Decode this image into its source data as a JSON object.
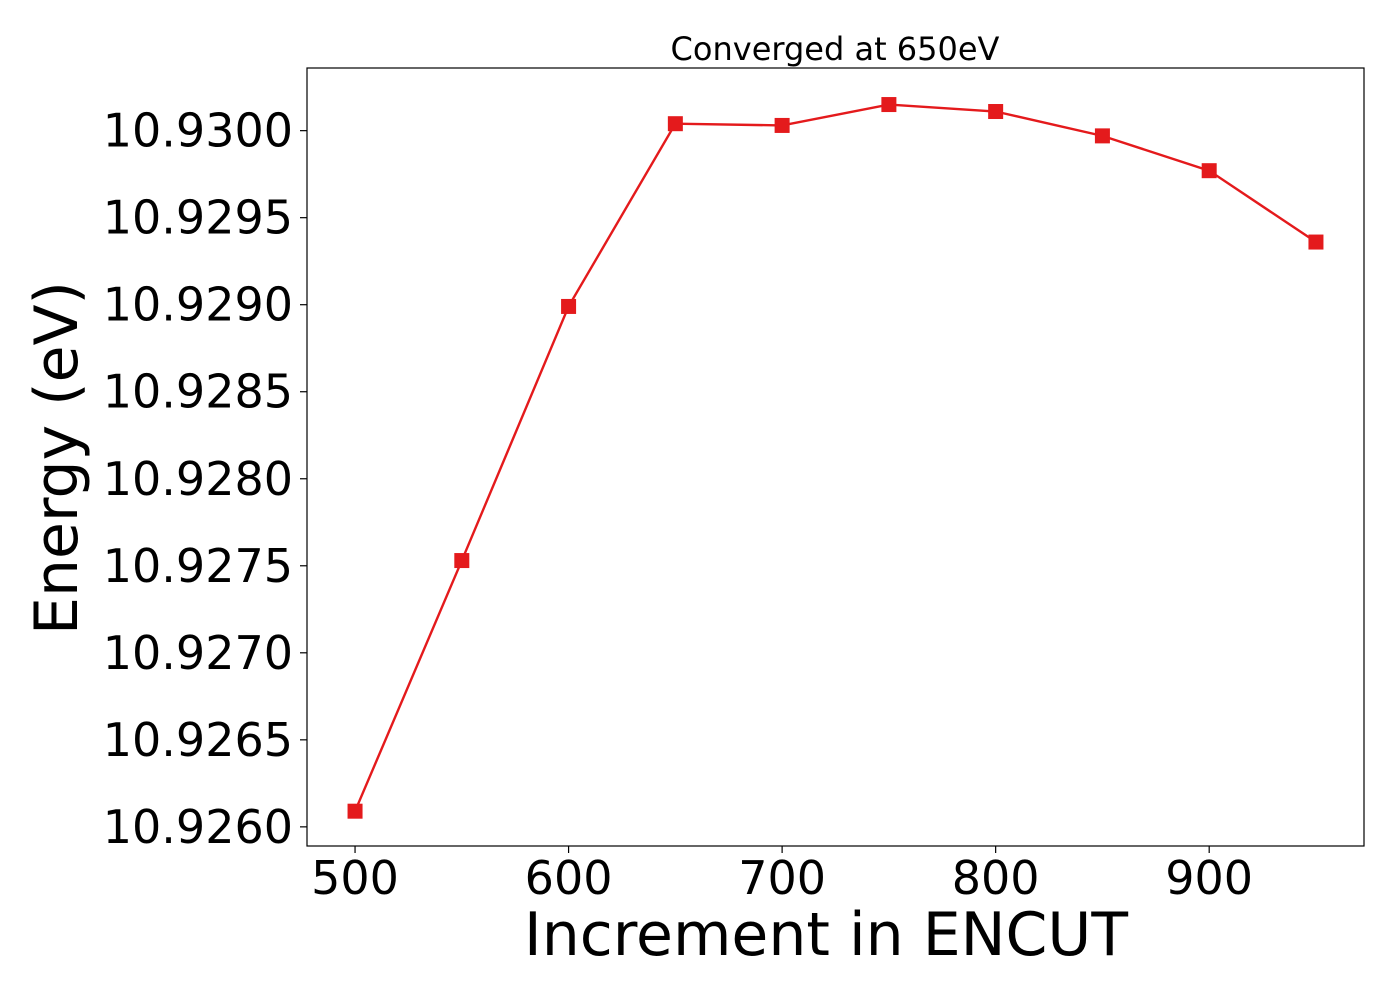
{
  "chart_data": {
    "type": "line",
    "title": "Converged at 650eV",
    "xlabel": "Increment in ENCUT",
    "ylabel": "Energy (eV)",
    "x": [
      500,
      550,
      600,
      650,
      700,
      750,
      800,
      850,
      900,
      950
    ],
    "series": [
      {
        "values": [
          10.92609,
          10.92753,
          10.92899,
          10.93004,
          10.93003,
          10.93015,
          10.93011,
          10.92997,
          10.92977,
          10.92936
        ],
        "color": "#e41a1c",
        "marker": "square"
      }
    ],
    "xlim": [
      477.5,
      972.5
    ],
    "ylim": [
      10.92589,
      10.93036
    ],
    "xticks": [
      500,
      600,
      700,
      800,
      900
    ],
    "xtick_labels": [
      "500",
      "600",
      "700",
      "800",
      "900"
    ],
    "yticks": [
      10.926,
      10.9265,
      10.927,
      10.9275,
      10.928,
      10.9285,
      10.929,
      10.9295,
      10.93
    ],
    "ytick_labels": [
      "10.9260",
      "10.9265",
      "10.9270",
      "10.9275",
      "10.9280",
      "10.9285",
      "10.9290",
      "10.9295",
      "10.9300"
    ],
    "grid": false,
    "legend": "none"
  }
}
